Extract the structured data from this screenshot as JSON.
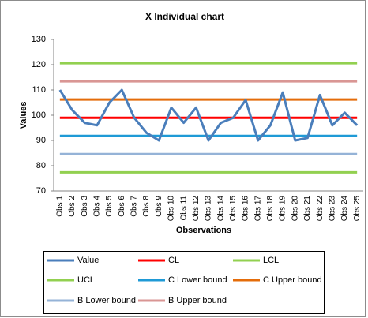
{
  "chart_data": {
    "type": "line",
    "title": "X Individual chart",
    "x_label": "Observations",
    "y_label": "Values",
    "categories": [
      "Obs 1",
      "Obs 2",
      "Obs 3",
      "Obs 4",
      "Obs 5",
      "Obs 6",
      "Obs 7",
      "Obs 8",
      "Obs 9",
      "Obs 10",
      "Obs 11",
      "Obs 12",
      "Obs 13",
      "Obs 14",
      "Obs 15",
      "Obs 16",
      "Obs 17",
      "Obs 18",
      "Obs 19",
      "Obs 20",
      "Obs 21",
      "Obs 22",
      "Obs 23",
      "Obs 24",
      "Obs 25"
    ],
    "series": [
      {
        "name": "Value",
        "color": "#4a7ebb",
        "values": [
          110,
          102,
          97,
          96,
          105,
          110,
          99,
          93,
          90,
          103,
          97,
          103,
          90,
          97,
          99,
          106,
          90,
          96,
          109,
          90,
          91,
          108,
          96,
          101,
          96
        ]
      },
      {
        "name": "CL",
        "color": "#ff0000",
        "values": [
          99,
          99,
          99,
          99,
          99,
          99,
          99,
          99,
          99,
          99,
          99,
          99,
          99,
          99,
          99,
          99,
          99,
          99,
          99,
          99,
          99,
          99,
          99,
          99,
          99
        ]
      },
      {
        "name": "LCL",
        "color": "#92d050",
        "values": [
          77.4,
          77.4,
          77.4,
          77.4,
          77.4,
          77.4,
          77.4,
          77.4,
          77.4,
          77.4,
          77.4,
          77.4,
          77.4,
          77.4,
          77.4,
          77.4,
          77.4,
          77.4,
          77.4,
          77.4,
          77.4,
          77.4,
          77.4,
          77.4,
          77.4
        ]
      },
      {
        "name": "UCL",
        "color": "#92d050",
        "values": [
          120.6,
          120.6,
          120.6,
          120.6,
          120.6,
          120.6,
          120.6,
          120.6,
          120.6,
          120.6,
          120.6,
          120.6,
          120.6,
          120.6,
          120.6,
          120.6,
          120.6,
          120.6,
          120.6,
          120.6,
          120.6,
          120.6,
          120.6,
          120.6,
          120.6
        ]
      },
      {
        "name": "C Lower bound",
        "color": "#1f9ad6",
        "values": [
          91.8,
          91.8,
          91.8,
          91.8,
          91.8,
          91.8,
          91.8,
          91.8,
          91.8,
          91.8,
          91.8,
          91.8,
          91.8,
          91.8,
          91.8,
          91.8,
          91.8,
          91.8,
          91.8,
          91.8,
          91.8,
          91.8,
          91.8,
          91.8,
          91.8
        ]
      },
      {
        "name": "C Upper bound",
        "color": "#e46c0a",
        "values": [
          106.2,
          106.2,
          106.2,
          106.2,
          106.2,
          106.2,
          106.2,
          106.2,
          106.2,
          106.2,
          106.2,
          106.2,
          106.2,
          106.2,
          106.2,
          106.2,
          106.2,
          106.2,
          106.2,
          106.2,
          106.2,
          106.2,
          106.2,
          106.2,
          106.2
        ]
      },
      {
        "name": "B Lower bound",
        "color": "#95b3d7",
        "values": [
          84.6,
          84.6,
          84.6,
          84.6,
          84.6,
          84.6,
          84.6,
          84.6,
          84.6,
          84.6,
          84.6,
          84.6,
          84.6,
          84.6,
          84.6,
          84.6,
          84.6,
          84.6,
          84.6,
          84.6,
          84.6,
          84.6,
          84.6,
          84.6,
          84.6
        ]
      },
      {
        "name": "B Upper bound",
        "color": "#d99694",
        "values": [
          113.4,
          113.4,
          113.4,
          113.4,
          113.4,
          113.4,
          113.4,
          113.4,
          113.4,
          113.4,
          113.4,
          113.4,
          113.4,
          113.4,
          113.4,
          113.4,
          113.4,
          113.4,
          113.4,
          113.4,
          113.4,
          113.4,
          113.4,
          113.4,
          113.4
        ]
      }
    ],
    "ylim": [
      70,
      130
    ],
    "yticks": [
      70,
      80,
      90,
      100,
      110,
      120,
      130
    ],
    "grid": false,
    "legend": "bottom"
  }
}
